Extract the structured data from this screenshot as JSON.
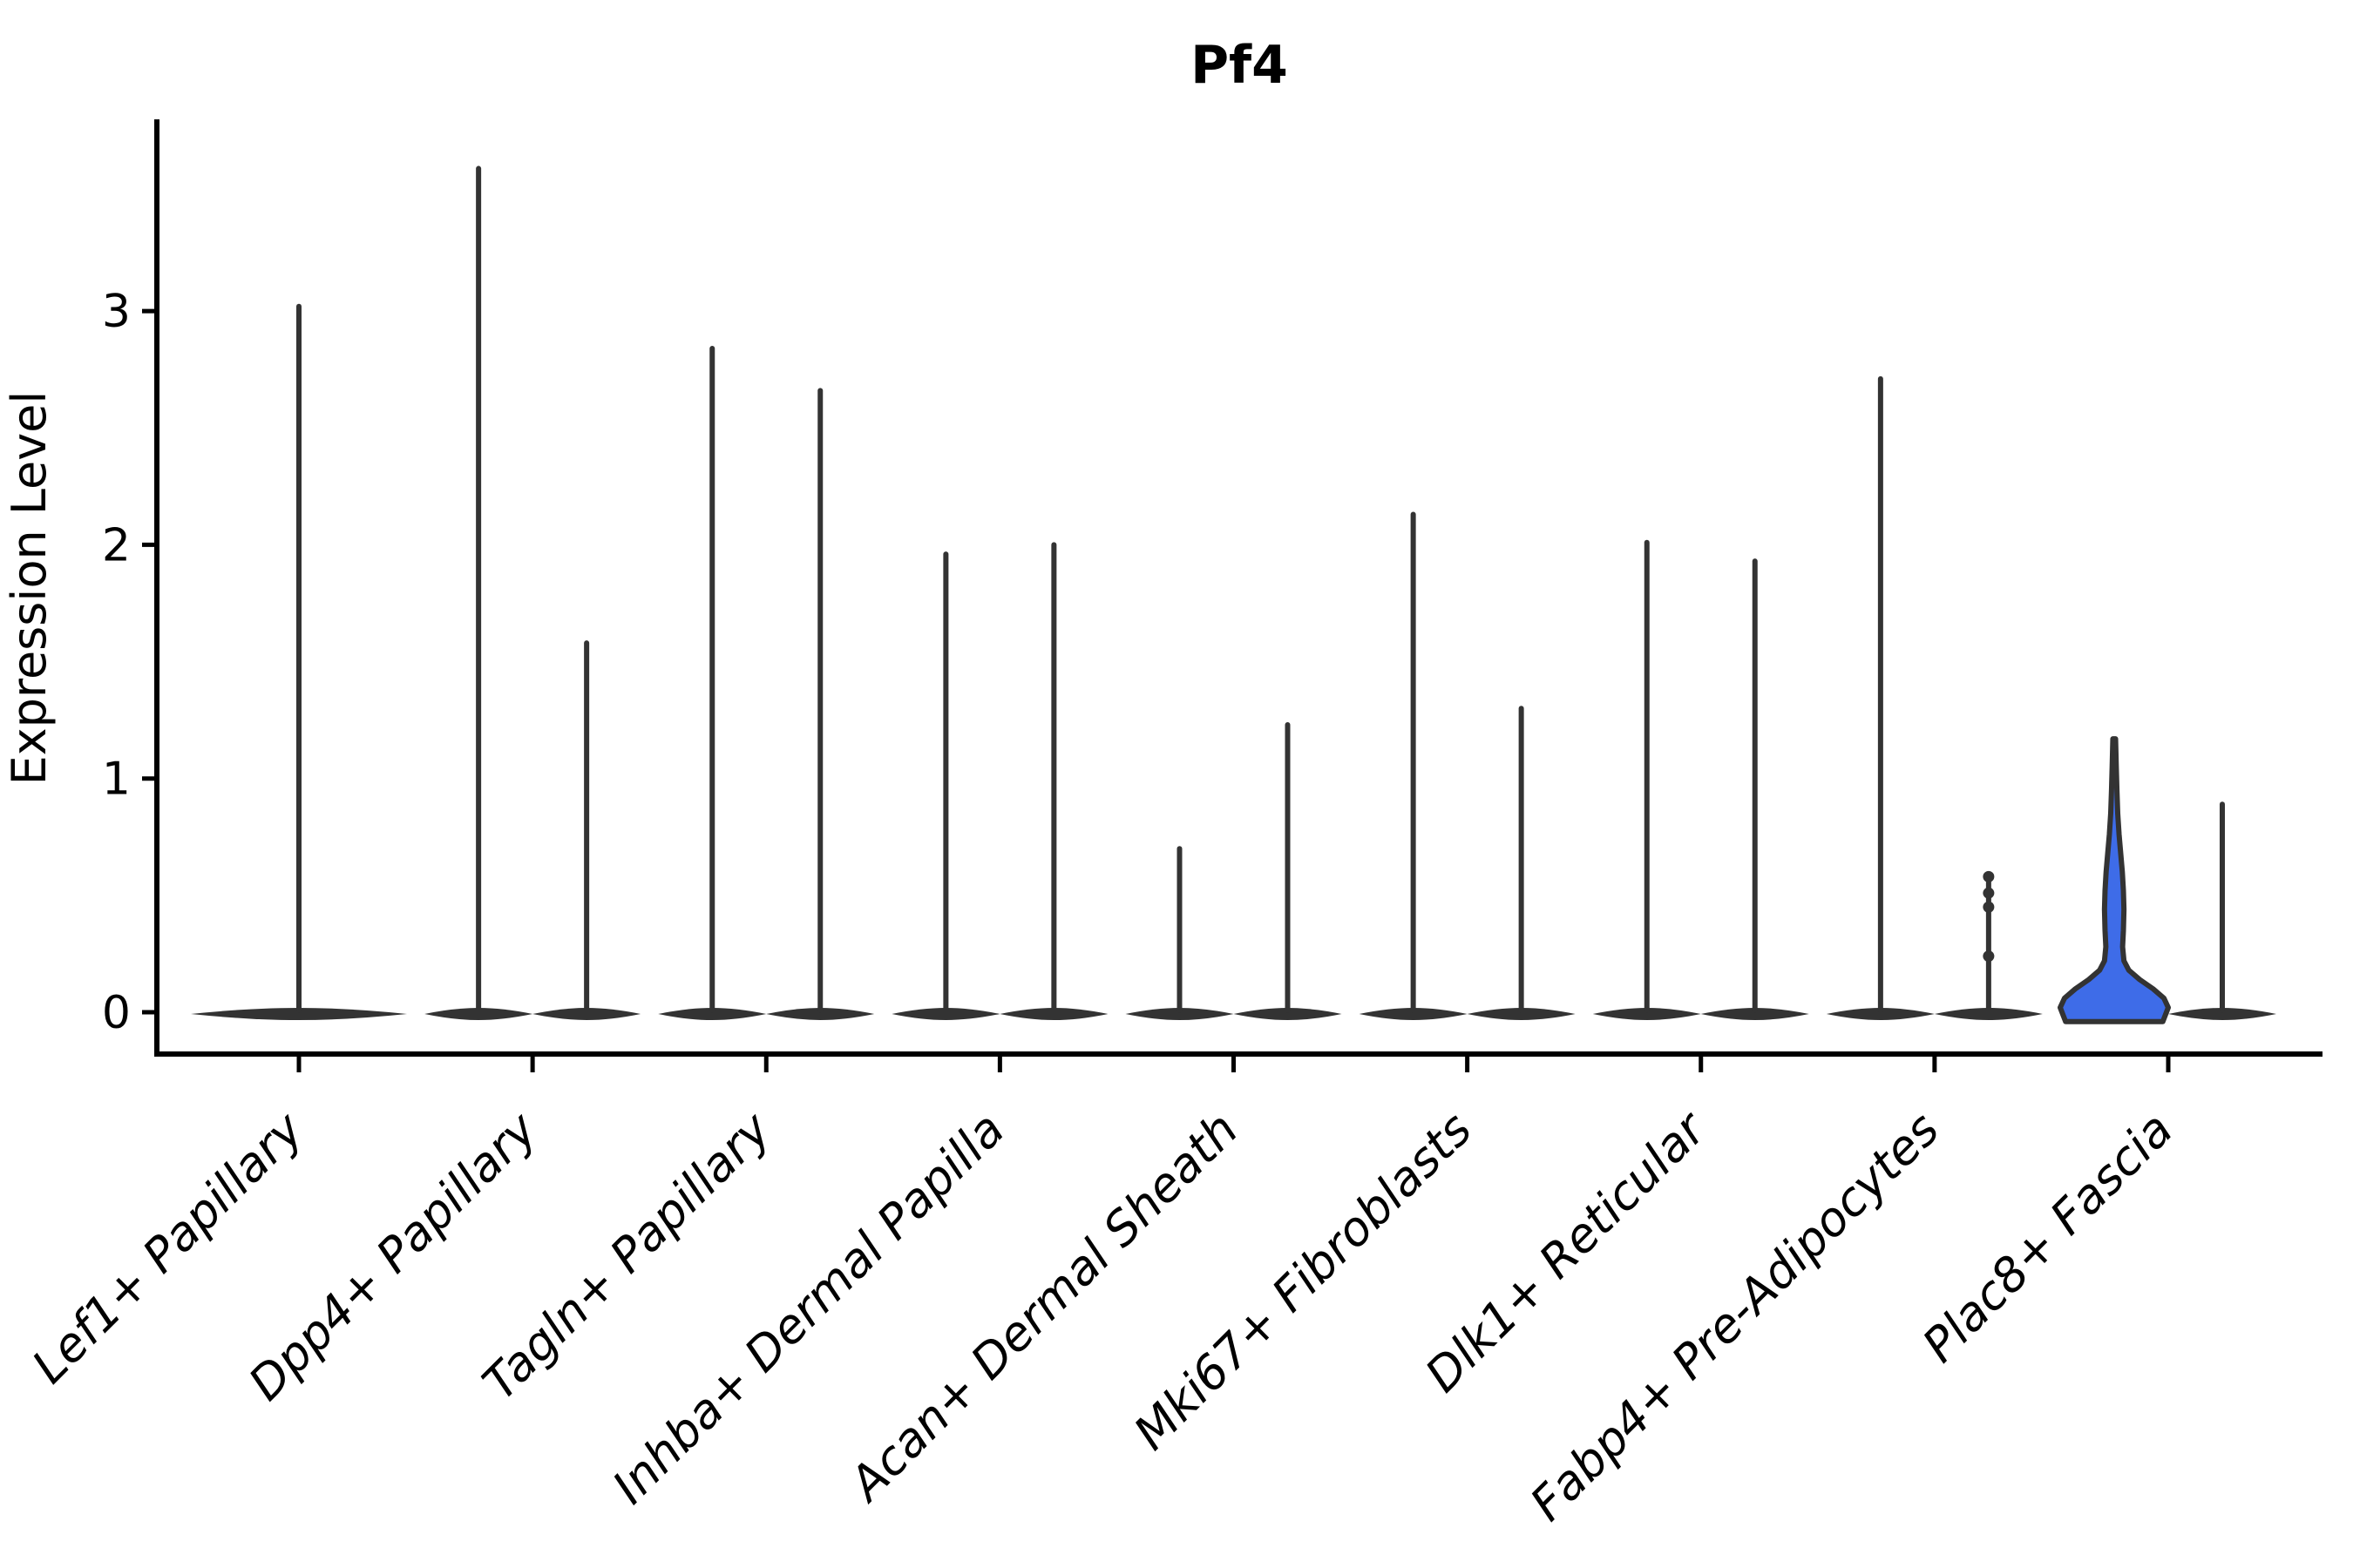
{
  "chart_data": {
    "type": "violin",
    "title": "Pf4",
    "ylabel": "Expression Level",
    "xlabel": "",
    "yticks": [
      0,
      1,
      2,
      3
    ],
    "ylim": [
      -0.18,
      3.81
    ],
    "grid": false,
    "legend": "none",
    "categories": [
      "Lef1+ Papillary",
      "Dpp4+ Papillary",
      "Tagln+ Papillary",
      "Inhba+ Dermal Papilla",
      "Acan+ Dermal Sheath",
      "Mki67+ Fibroblasts",
      "Dlk1+ Reticular",
      "Fabp4+ Pre-Adipocytes",
      "Plac8+ Fascia"
    ],
    "series": [
      {
        "category": "Lef1+ Papillary",
        "position": "center",
        "peak": 3.02,
        "fill": "none"
      },
      {
        "category": "Dpp4+ Papillary",
        "position": "left",
        "peak": 3.61,
        "fill": "none"
      },
      {
        "category": "Dpp4+ Papillary",
        "position": "right",
        "peak": 1.58,
        "fill": "none"
      },
      {
        "category": "Tagln+ Papillary",
        "position": "left",
        "peak": 2.84,
        "fill": "none"
      },
      {
        "category": "Tagln+ Papillary",
        "position": "right",
        "peak": 2.66,
        "fill": "none"
      },
      {
        "category": "Inhba+ Dermal Papilla",
        "position": "left",
        "peak": 1.96,
        "fill": "none"
      },
      {
        "category": "Inhba+ Dermal Papilla",
        "position": "right",
        "peak": 2.0,
        "fill": "none"
      },
      {
        "category": "Acan+ Dermal Sheath",
        "position": "left",
        "peak": 0.7,
        "fill": "none"
      },
      {
        "category": "Acan+ Dermal Sheath",
        "position": "right",
        "peak": 1.23,
        "fill": "none"
      },
      {
        "category": "Mki67+ Fibroblasts",
        "position": "left",
        "peak": 2.13,
        "fill": "none"
      },
      {
        "category": "Mki67+ Fibroblasts",
        "position": "right",
        "peak": 1.3,
        "fill": "none"
      },
      {
        "category": "Dlk1+ Reticular",
        "position": "left",
        "peak": 2.01,
        "fill": "none"
      },
      {
        "category": "Dlk1+ Reticular",
        "position": "right",
        "peak": 1.93,
        "fill": "none"
      },
      {
        "category": "Fabp4+ Pre-Adipocytes",
        "position": "left",
        "peak": 2.71,
        "fill": "none"
      },
      {
        "category": "Fabp4+ Pre-Adipocytes",
        "position": "right",
        "peak": 0.58,
        "fill": "none",
        "jitter_points": [
          0.58,
          0.51,
          0.45,
          0.24
        ]
      },
      {
        "category": "Plac8+ Fascia",
        "position": "left",
        "peak": 1.17,
        "fill": "#3E6CE8",
        "body_profile": [
          [
            -0.04,
            0.9
          ],
          [
            0.02,
            1.0
          ],
          [
            0.06,
            0.92
          ],
          [
            0.1,
            0.72
          ],
          [
            0.14,
            0.47
          ],
          [
            0.18,
            0.27
          ],
          [
            0.22,
            0.18
          ],
          [
            0.28,
            0.155
          ],
          [
            0.35,
            0.17
          ],
          [
            0.44,
            0.18
          ],
          [
            0.52,
            0.17
          ],
          [
            0.6,
            0.15
          ],
          [
            0.68,
            0.12
          ],
          [
            0.76,
            0.09
          ],
          [
            0.85,
            0.065
          ],
          [
            0.95,
            0.05
          ],
          [
            1.05,
            0.038
          ],
          [
            1.17,
            0.025
          ]
        ]
      },
      {
        "category": "Plac8+ Fascia",
        "position": "right",
        "peak": 0.89,
        "fill": "none"
      }
    ],
    "colors": {
      "violin_outline": "#333333",
      "highlight_fill": "#3E6CE8",
      "axis": "#000000",
      "background": "#ffffff"
    }
  }
}
